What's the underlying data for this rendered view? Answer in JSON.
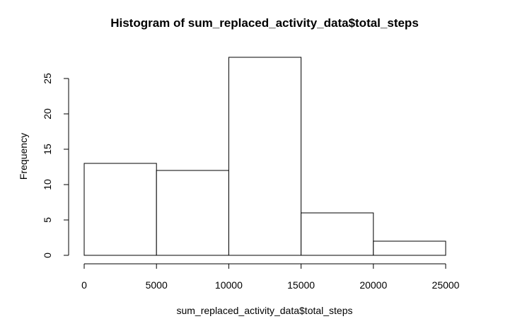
{
  "chart_data": {
    "type": "bar",
    "title": "Histogram of sum_replaced_activity_data$total_steps",
    "xlabel": "sum_replaced_activity_data$total_steps",
    "ylabel": "Frequency",
    "bins": [
      {
        "start": 0,
        "end": 5000,
        "count": 13
      },
      {
        "start": 5000,
        "end": 10000,
        "count": 12
      },
      {
        "start": 10000,
        "end": 15000,
        "count": 28
      },
      {
        "start": 15000,
        "end": 20000,
        "count": 6
      },
      {
        "start": 20000,
        "end": 25000,
        "count": 2
      }
    ],
    "xlim": [
      0,
      25000
    ],
    "ylim": [
      0,
      28
    ],
    "x_ticks": [
      "0",
      "5000",
      "10000",
      "15000",
      "20000",
      "25000"
    ],
    "y_ticks": [
      "0",
      "5",
      "10",
      "15",
      "20",
      "25"
    ],
    "grid": false,
    "bar_fill": "#ffffff",
    "bar_stroke": "#000000"
  }
}
